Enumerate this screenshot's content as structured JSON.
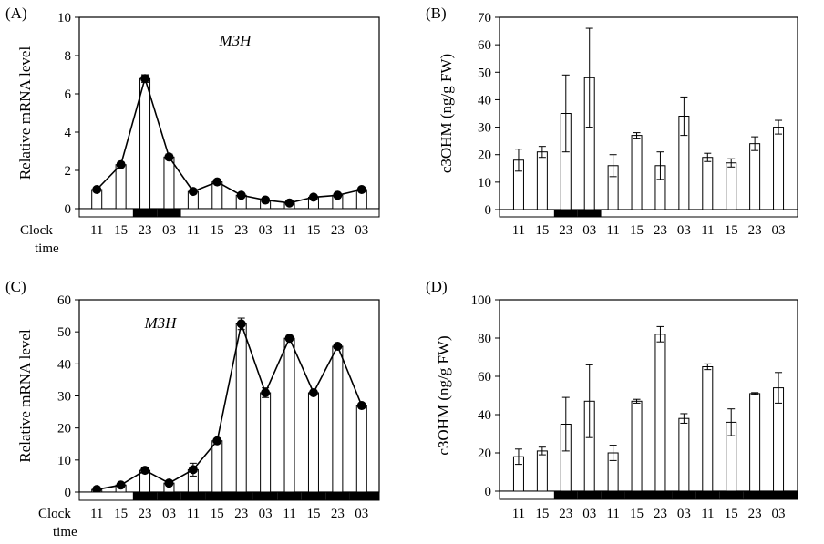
{
  "chart_data": [
    {
      "panel": "(A)",
      "type": "bar",
      "overlay": "line",
      "annotation": "M3H",
      "ylabel": "Relative mRNA level",
      "xlabel": "Clock time",
      "ylim": [
        0,
        10
      ],
      "yticks": [
        0,
        2,
        4,
        6,
        8,
        10
      ],
      "categories": [
        "11",
        "15",
        "23",
        "03",
        "11",
        "15",
        "23",
        "03",
        "11",
        "15",
        "23",
        "03"
      ],
      "values": [
        1.0,
        2.3,
        6.8,
        2.7,
        0.9,
        1.4,
        0.7,
        0.45,
        0.3,
        0.6,
        0.7,
        1.0
      ],
      "errors": [
        0.1,
        0.1,
        0.2,
        0.15,
        0.1,
        0.1,
        0.08,
        0.06,
        0.05,
        0.08,
        0.08,
        0.1
      ],
      "light_dark_bar": [
        "light",
        "light",
        "dark",
        "dark",
        "light",
        "light",
        "light",
        "light",
        "light",
        "light",
        "light",
        "light"
      ]
    },
    {
      "panel": "(B)",
      "type": "bar",
      "ylabel": "c3OHM (ng/g FW)",
      "ylim": [
        0,
        70
      ],
      "yticks": [
        0,
        10,
        20,
        30,
        40,
        50,
        60,
        70
      ],
      "categories": [
        "11",
        "15",
        "23",
        "03",
        "11",
        "15",
        "23",
        "03",
        "11",
        "15",
        "23",
        "03"
      ],
      "values": [
        18,
        21,
        35,
        48,
        16,
        27,
        16,
        34,
        19,
        17,
        24,
        30
      ],
      "errors": [
        4,
        2,
        14,
        18,
        4,
        1,
        5,
        7,
        1.5,
        1.5,
        2.5,
        2.5
      ],
      "light_dark_bar": [
        "light",
        "light",
        "dark",
        "dark",
        "light",
        "light",
        "light",
        "light",
        "light",
        "light",
        "light",
        "light"
      ]
    },
    {
      "panel": "(C)",
      "type": "bar",
      "overlay": "line",
      "annotation": "M3H",
      "ylabel": "Relative mRNA level",
      "xlabel": "Clock time",
      "ylim": [
        0,
        60
      ],
      "yticks": [
        0,
        10,
        20,
        30,
        40,
        50,
        60
      ],
      "categories": [
        "11",
        "15",
        "23",
        "03",
        "11",
        "15",
        "23",
        "03",
        "11",
        "15",
        "23",
        "03"
      ],
      "values": [
        0.8,
        2.2,
        6.8,
        2.8,
        7.0,
        16.0,
        52.5,
        31.0,
        48.0,
        31.0,
        45.5,
        27.0
      ],
      "errors": [
        0.2,
        0.3,
        0.5,
        0.4,
        2.0,
        0.5,
        1.8,
        1.5,
        0.6,
        0.5,
        0.7,
        0.6
      ],
      "light_dark_bar": [
        "light",
        "light",
        "dark",
        "dark",
        "dark",
        "dark",
        "dark",
        "dark",
        "dark",
        "dark",
        "dark",
        "dark"
      ]
    },
    {
      "panel": "(D)",
      "type": "bar",
      "ylabel": "c3OHM (ng/g FW)",
      "ylim": [
        0,
        100
      ],
      "yticks": [
        0,
        20,
        40,
        60,
        80,
        100
      ],
      "categories": [
        "11",
        "15",
        "23",
        "03",
        "11",
        "15",
        "23",
        "03",
        "11",
        "15",
        "23",
        "03"
      ],
      "values": [
        18,
        21,
        35,
        47,
        20,
        47,
        82,
        38,
        65,
        36,
        51,
        54
      ],
      "errors": [
        4,
        2,
        14,
        19,
        4,
        1,
        4,
        2.5,
        1.5,
        7,
        0.5,
        8
      ],
      "light_dark_bar": [
        "light",
        "light",
        "dark",
        "dark",
        "dark",
        "dark",
        "dark",
        "dark",
        "dark",
        "dark",
        "dark",
        "dark"
      ]
    }
  ],
  "style": {
    "bar_fill": "#ffffff",
    "bar_stroke": "#000000",
    "line_color": "#000000",
    "marker_color": "#000000",
    "light_period_color": "#ffffff",
    "dark_period_color": "#000000"
  }
}
